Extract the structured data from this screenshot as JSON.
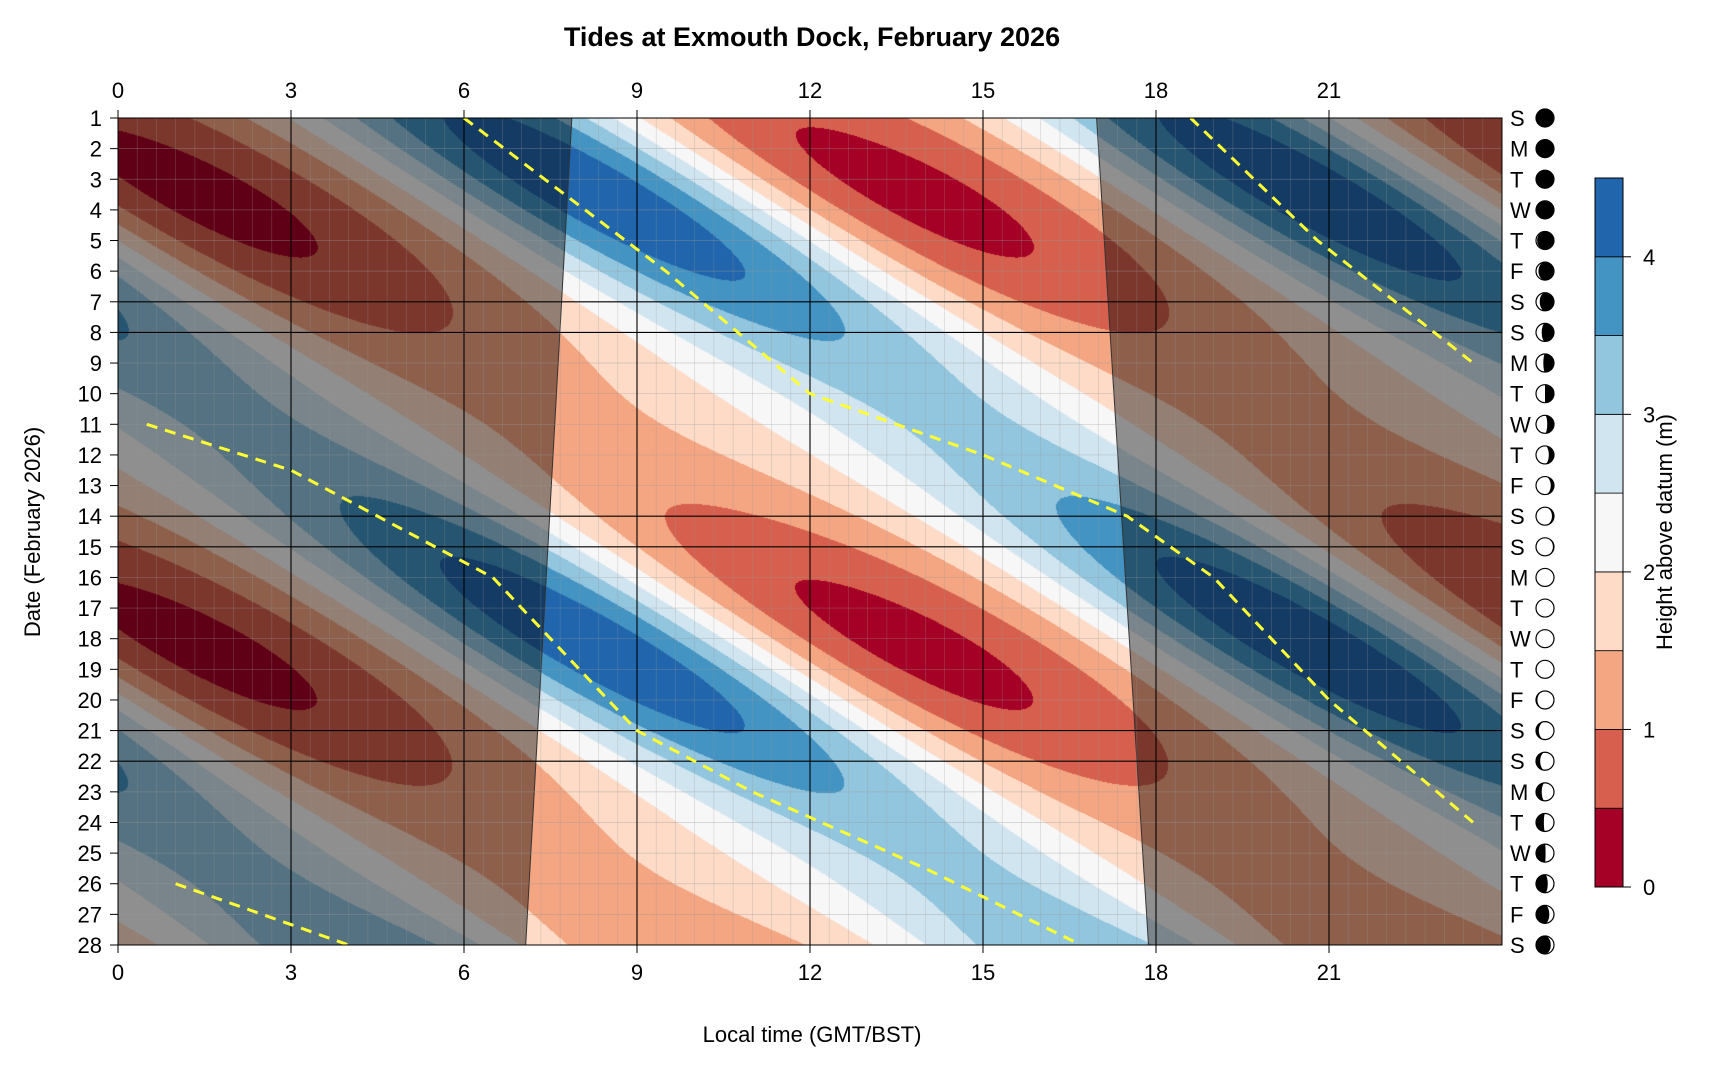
{
  "chart_data": {
    "type": "heatmap",
    "title": "Tides at Exmouth Dock, February 2026",
    "xlabel": "Local time (GMT/BST)",
    "ylabel": "Date (February 2026)",
    "colorbar_label": "Height above datum (m)",
    "x_range": [
      0,
      24
    ],
    "x_ticks": [
      0,
      3,
      6,
      9,
      12,
      15,
      18,
      21
    ],
    "x_ticks_top": [
      0,
      3,
      6,
      9,
      12,
      15,
      18,
      21
    ],
    "y_range": [
      1,
      28
    ],
    "y_ticks": [
      1,
      2,
      3,
      4,
      5,
      6,
      7,
      8,
      9,
      10,
      11,
      12,
      13,
      14,
      15,
      16,
      17,
      18,
      19,
      20,
      21,
      22,
      23,
      24,
      25,
      26,
      27,
      28
    ],
    "y_reversed": true,
    "colorbar_ticks": [
      0,
      1,
      2,
      3,
      4
    ],
    "colorbar_range": [
      0,
      4.5
    ],
    "levels": [
      0,
      0.5,
      1,
      1.5,
      2,
      2.5,
      3,
      3.5,
      4,
      4.5
    ],
    "level_colors": [
      "#a50026",
      "#d6604d",
      "#f4a582",
      "#fddbc7",
      "#f7f7f7",
      "#d1e5f0",
      "#92c5de",
      "#4393c3",
      "#2166ac"
    ],
    "tide_model": {
      "mean_level": 2.15,
      "spring_amplitude": 2.2,
      "neap_amplitude": 1.0,
      "high_water_day1_hours": [
        6.0,
        18.45
      ],
      "high_water_daily_delay_hours": 0.84,
      "spring_phase_day": 18.2,
      "spring_neap_cycle_days": 14.77
    },
    "daylight": {
      "sunrise": [
        [
          1,
          7.87
        ],
        [
          28,
          7.07
        ]
      ],
      "sunset": [
        [
          1,
          16.97
        ],
        [
          28,
          17.87
        ]
      ]
    },
    "high_tide_lines": [
      [
        [
          6.0,
          1
        ],
        [
          9.5,
          6
        ],
        [
          12.0,
          10
        ],
        [
          15.0,
          12
        ],
        [
          17.5,
          14
        ],
        [
          19.0,
          16
        ],
        [
          21.0,
          20
        ],
        [
          23.5,
          24
        ]
      ],
      [
        [
          0.5,
          11
        ],
        [
          3.0,
          12.5
        ],
        [
          6.5,
          16
        ],
        [
          9.0,
          21
        ],
        [
          11.0,
          23
        ],
        [
          14.0,
          25.5
        ],
        [
          16.7,
          28
        ]
      ],
      [
        [
          18.6,
          1
        ],
        [
          20.8,
          5
        ],
        [
          23.5,
          9
        ]
      ],
      [
        [
          1.0,
          26
        ],
        [
          4.0,
          28
        ]
      ]
    ],
    "days": [
      {
        "day": 1,
        "letter": "S",
        "moon_phase": 0.45
      },
      {
        "day": 2,
        "letter": "M",
        "moon_phase": 0.48
      },
      {
        "day": 3,
        "letter": "T",
        "moon_phase": 0.52
      },
      {
        "day": 4,
        "letter": "W",
        "moon_phase": 0.55
      },
      {
        "day": 5,
        "letter": "T",
        "moon_phase": 0.58
      },
      {
        "day": 6,
        "letter": "F",
        "moon_phase": 0.62
      },
      {
        "day": 7,
        "letter": "S",
        "moon_phase": 0.65
      },
      {
        "day": 8,
        "letter": "S",
        "moon_phase": 0.69
      },
      {
        "day": 9,
        "letter": "M",
        "moon_phase": 0.72
      },
      {
        "day": 10,
        "letter": "T",
        "moon_phase": 0.75
      },
      {
        "day": 11,
        "letter": "W",
        "moon_phase": 0.79
      },
      {
        "day": 12,
        "letter": "T",
        "moon_phase": 0.82
      },
      {
        "day": 13,
        "letter": "F",
        "moon_phase": 0.86
      },
      {
        "day": 14,
        "letter": "S",
        "moon_phase": 0.89
      },
      {
        "day": 15,
        "letter": "S",
        "moon_phase": 0.92
      },
      {
        "day": 16,
        "letter": "M",
        "moon_phase": 0.96
      },
      {
        "day": 17,
        "letter": "T",
        "moon_phase": 0.99
      },
      {
        "day": 18,
        "letter": "W",
        "moon_phase": 0.02
      },
      {
        "day": 19,
        "letter": "T",
        "moon_phase": 0.06
      },
      {
        "day": 20,
        "letter": "F",
        "moon_phase": 0.09
      },
      {
        "day": 21,
        "letter": "S",
        "moon_phase": 0.13
      },
      {
        "day": 22,
        "letter": "S",
        "moon_phase": 0.16
      },
      {
        "day": 23,
        "letter": "M",
        "moon_phase": 0.19
      },
      {
        "day": 24,
        "letter": "T",
        "moon_phase": 0.23
      },
      {
        "day": 25,
        "letter": "W",
        "moon_phase": 0.26
      },
      {
        "day": 26,
        "letter": "T",
        "moon_phase": 0.3
      },
      {
        "day": 27,
        "letter": "F",
        "moon_phase": 0.33
      },
      {
        "day": 28,
        "letter": "S",
        "moon_phase": 0.36
      }
    ],
    "weekend_days": [
      1,
      7,
      8,
      14,
      15,
      21,
      22,
      28
    ]
  }
}
